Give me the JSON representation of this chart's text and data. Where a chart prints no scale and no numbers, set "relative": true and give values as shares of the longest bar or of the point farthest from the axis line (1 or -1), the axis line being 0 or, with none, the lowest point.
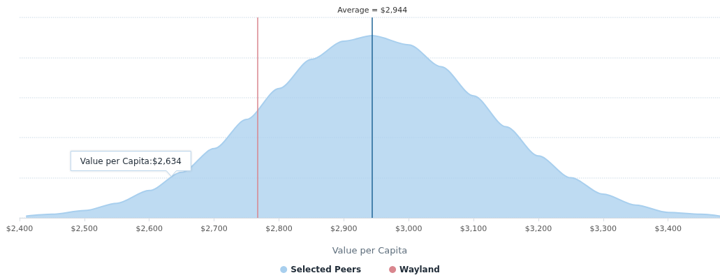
{
  "chart_data": {
    "type": "area",
    "relative": true,
    "xlabel": "Value per Capita",
    "x": [
      2410,
      2450,
      2500,
      2550,
      2600,
      2650,
      2700,
      2750,
      2800,
      2850,
      2900,
      2944,
      3000,
      3050,
      3100,
      3150,
      3200,
      3250,
      3300,
      3350,
      3400,
      3450,
      3480
    ],
    "series": [
      {
        "name": "Selected Peers",
        "color": "#a8cfee",
        "values": [
          0.01,
          0.02,
          0.04,
          0.08,
          0.15,
          0.25,
          0.38,
          0.54,
          0.71,
          0.87,
          0.97,
          1,
          0.95,
          0.83,
          0.67,
          0.5,
          0.34,
          0.22,
          0.13,
          0.07,
          0.03,
          0.02,
          0.01
        ]
      }
    ],
    "xlim": [
      2400,
      3480
    ],
    "xticks": [
      {
        "value": 2400,
        "label": "$2,400"
      },
      {
        "value": 2500,
        "label": "$2,500"
      },
      {
        "value": 2600,
        "label": "$2,600"
      },
      {
        "value": 2700,
        "label": "$2,700"
      },
      {
        "value": 2800,
        "label": "$2,800"
      },
      {
        "value": 2900,
        "label": "$2,900"
      },
      {
        "value": 3000,
        "label": "$3,000"
      },
      {
        "value": 3100,
        "label": "$3,100"
      },
      {
        "value": 3200,
        "label": "$3,200"
      },
      {
        "value": 3300,
        "label": "$3,300"
      },
      {
        "value": 3400,
        "label": "$3,400"
      }
    ],
    "ref_lines": [
      {
        "axis": "x",
        "value": 2944,
        "color": "#1f6496"
      },
      {
        "axis": "x",
        "value": 2767,
        "label": "Wayland",
        "color": "#d9868e"
      }
    ],
    "annotations": [
      {
        "text": "Average = $2,944",
        "x": 2944,
        "y": 1.1
      },
      {
        "text": "Value per Capita:$2,634",
        "x": 2634,
        "y": 0.22
      }
    ],
    "grid": "y",
    "legend": "bottom",
    "marker": "none"
  }
}
